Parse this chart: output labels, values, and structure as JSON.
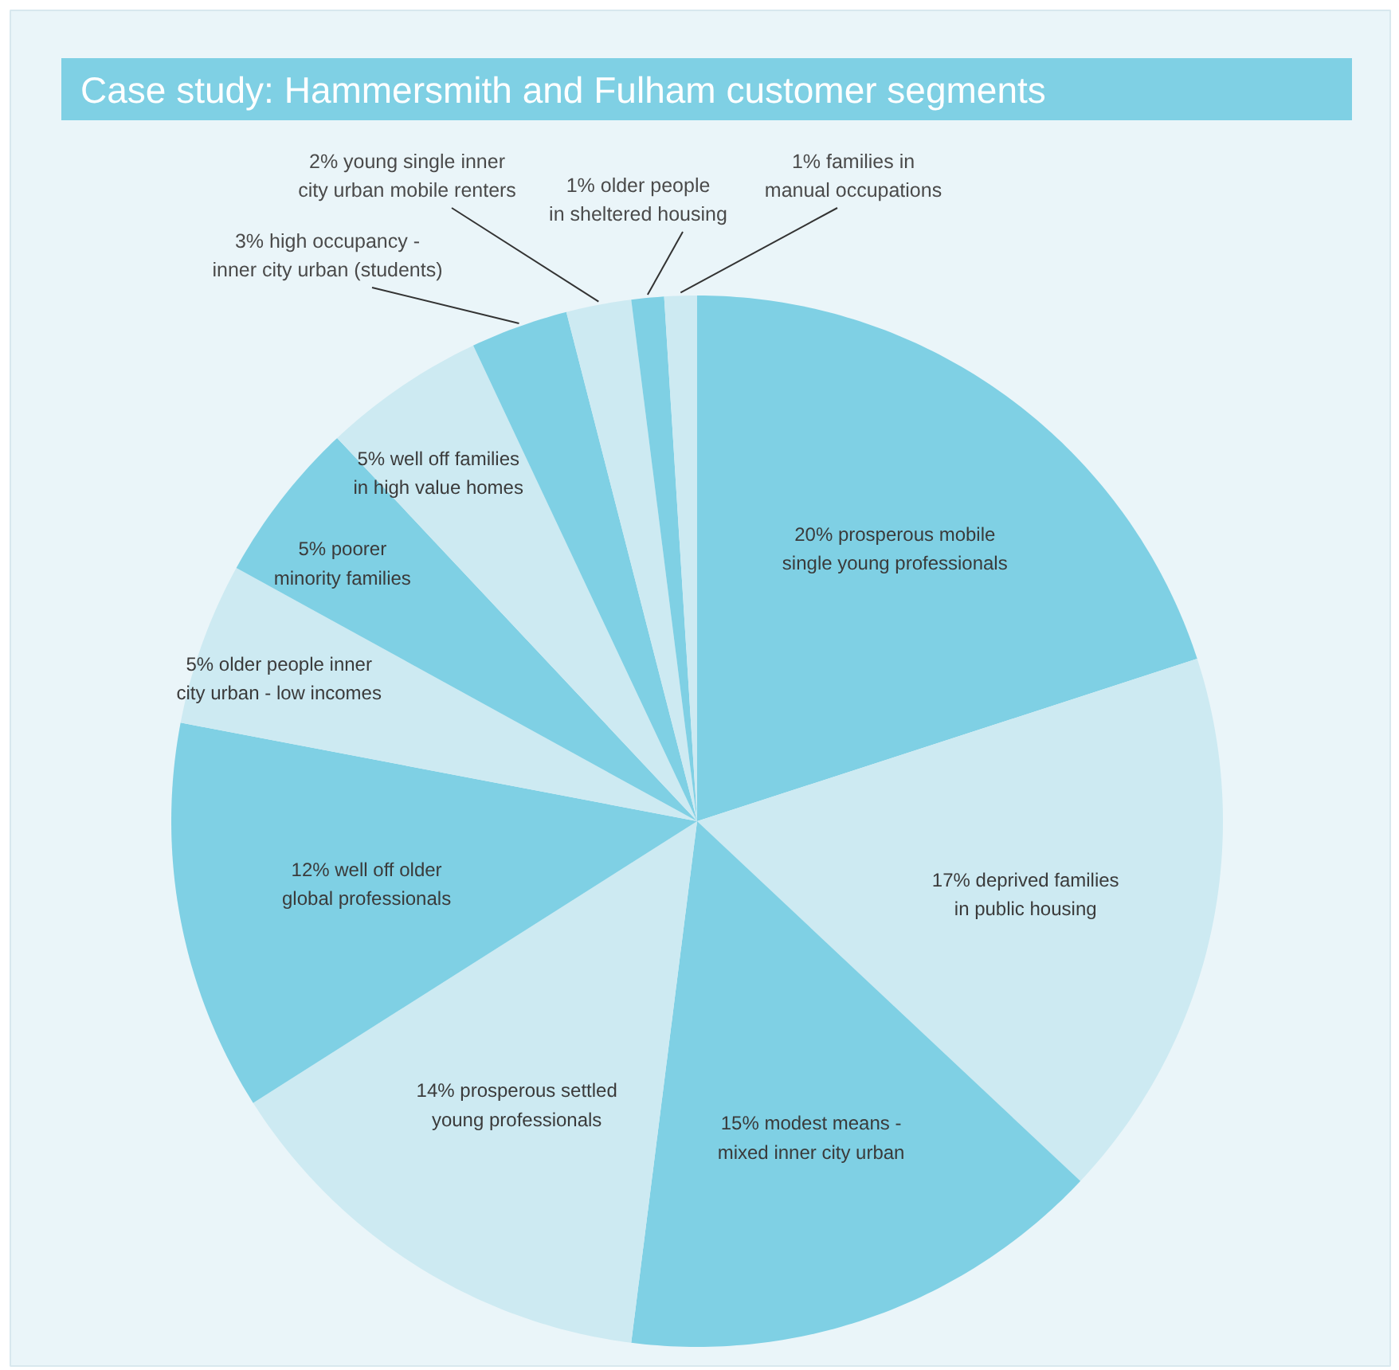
{
  "chart_data": {
    "type": "pie",
    "title": "Case study: Hammersmith and Fulham customer segments",
    "categories": [
      "20% prosperous mobile\nsingle young professionals",
      "17% deprived families\nin public housing",
      "15% modest means -\nmixed inner city urban",
      "14% prosperous settled\nyoung professionals",
      "12% well off older\nglobal professionals",
      "5% older people inner\ncity urban - low incomes",
      "5% poorer\nminority families",
      "5% well off families\nin high value homes",
      "3% high occupancy -\ninner city urban (students)",
      "2% young single inner\ncity urban mobile renters",
      "1% older people\nin sheltered housing",
      "1% families in\nmanual occupations"
    ],
    "values": [
      20,
      17,
      15,
      14,
      12,
      5,
      5,
      5,
      3,
      2,
      1,
      1
    ],
    "colors": [
      "#7fd0e4",
      "#cdeaf2",
      "#7fd0e4",
      "#cdeaf2",
      "#7fd0e4",
      "#cdeaf2",
      "#7fd0e4",
      "#cdeaf2",
      "#7fd0e4",
      "#cdeaf2",
      "#7fd0e4",
      "#cdeaf2"
    ]
  }
}
